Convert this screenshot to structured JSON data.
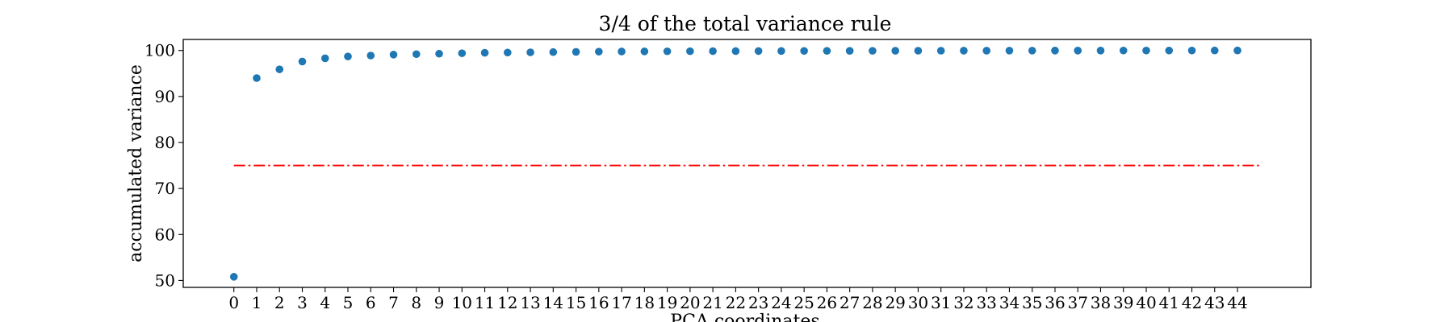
{
  "chart_data": {
    "type": "scatter",
    "title": "3/4 of the total variance rule",
    "xlabel": "PCA coordinates",
    "ylabel": "accumulated variance",
    "x": [
      0,
      1,
      2,
      3,
      4,
      5,
      6,
      7,
      8,
      9,
      10,
      11,
      12,
      13,
      14,
      15,
      16,
      17,
      18,
      19,
      20,
      21,
      22,
      23,
      24,
      25,
      26,
      27,
      28,
      29,
      30,
      31,
      32,
      33,
      34,
      35,
      36,
      37,
      38,
      39,
      40,
      41,
      42,
      43,
      44
    ],
    "series": [
      {
        "values": [
          50.8,
          94.0,
          95.9,
          97.6,
          98.3,
          98.7,
          98.9,
          99.1,
          99.2,
          99.3,
          99.4,
          99.5,
          99.55,
          99.6,
          99.65,
          99.7,
          99.75,
          99.78,
          99.8,
          99.82,
          99.84,
          99.86,
          99.87,
          99.88,
          99.89,
          99.9,
          99.91,
          99.92,
          99.93,
          99.94,
          99.95,
          99.95,
          99.96,
          99.96,
          99.97,
          99.97,
          99.98,
          99.98,
          99.98,
          99.99,
          99.99,
          99.99,
          99.99,
          100.0,
          100.0
        ],
        "color": "#1f77b4",
        "marker": "circle"
      }
    ],
    "threshold": {
      "y": 75,
      "x_range": [
        0,
        45
      ],
      "color": "#ff0000",
      "style": "dash-dot"
    },
    "xticks": [
      "0",
      "1",
      "2",
      "3",
      "4",
      "5",
      "6",
      "7",
      "8",
      "9",
      "10",
      "11",
      "12",
      "13",
      "14",
      "15",
      "16",
      "17",
      "18",
      "19",
      "20",
      "21",
      "22",
      "23",
      "24",
      "25",
      "26",
      "27",
      "28",
      "29",
      "30",
      "31",
      "32",
      "33",
      "34",
      "35",
      "36",
      "37",
      "38",
      "39",
      "40",
      "41",
      "42",
      "43",
      "44"
    ],
    "yticks": [
      50,
      60,
      70,
      80,
      90,
      100
    ],
    "xlim": [
      -2.22,
      47.22
    ],
    "ylim": [
      48.5,
      102.4
    ],
    "grid": false,
    "legend": false
  }
}
